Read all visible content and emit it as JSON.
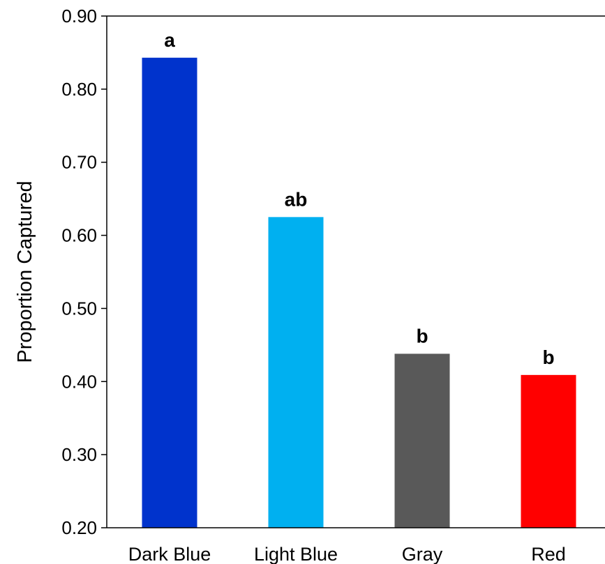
{
  "chart_data": {
    "type": "bar",
    "title": "",
    "xlabel": "",
    "ylabel": "Proportion Captured",
    "ylim": [
      0.2,
      0.9
    ],
    "yticks": [
      "0.20",
      "0.30",
      "0.40",
      "0.50",
      "0.60",
      "0.70",
      "0.80",
      "0.90"
    ],
    "categories": [
      "Dark Blue",
      "Light Blue",
      "Gray",
      "Red"
    ],
    "values": [
      0.843,
      0.625,
      0.438,
      0.409
    ],
    "significance_letters": [
      "a",
      "ab",
      "b",
      "b"
    ],
    "colors": [
      "#0033CC",
      "#00B0F0",
      "#595959",
      "#FF0000"
    ],
    "grid": false,
    "legend": "none"
  }
}
